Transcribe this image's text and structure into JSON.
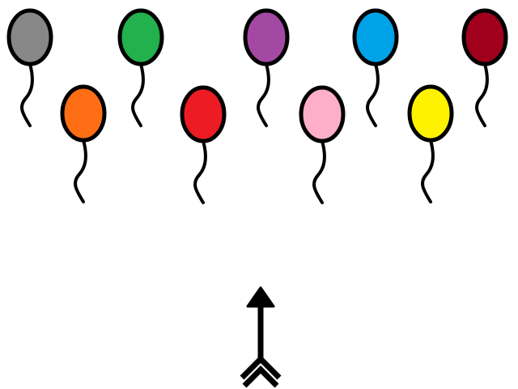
{
  "game": {
    "balloons": [
      {
        "color_name": "gray",
        "color": "#878787"
      },
      {
        "color_name": "orange",
        "color": "#FF6E14"
      },
      {
        "color_name": "green",
        "color": "#22B14C"
      },
      {
        "color_name": "red",
        "color": "#ED1C24"
      },
      {
        "color_name": "purple",
        "color": "#A349A4"
      },
      {
        "color_name": "pink",
        "color": "#FFAEC9"
      },
      {
        "color_name": "blue",
        "color": "#00A2E8"
      },
      {
        "color_name": "yellow",
        "color": "#FFF200"
      },
      {
        "color_name": "maroon",
        "color": "#A0001C"
      }
    ],
    "arrow": {
      "icon": "arrow-up-icon",
      "color": "#000000"
    }
  }
}
